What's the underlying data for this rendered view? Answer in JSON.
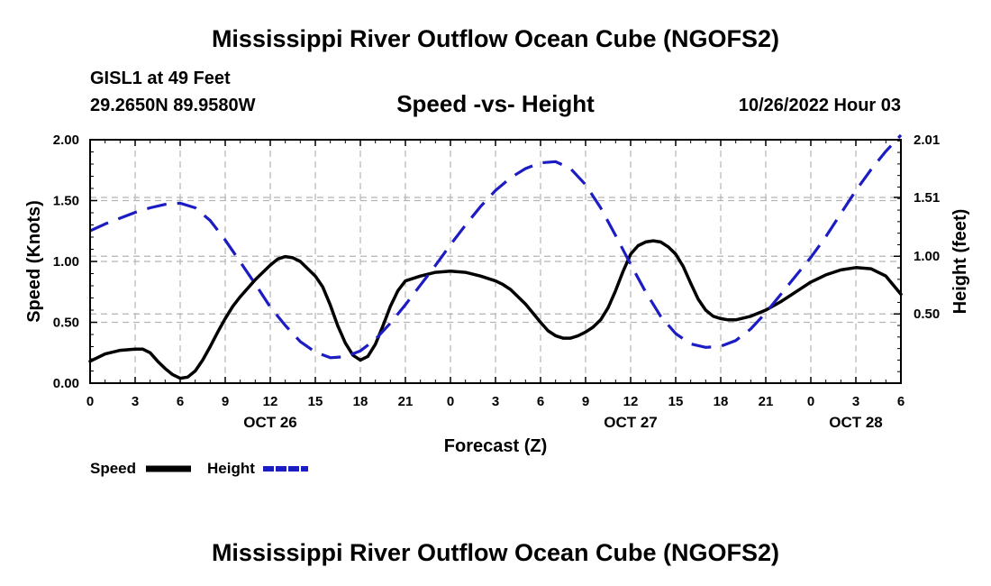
{
  "header": {
    "title": "Mississippi River Outflow Ocean Cube (NGOFS2)",
    "station": "GISL1 at 49 Feet",
    "coords": "29.2650N  89.9580W",
    "subtitle": "Speed -vs- Height",
    "runtime": "10/26/2022 Hour 03"
  },
  "footer": {
    "title": "Mississippi River Outflow Ocean Cube (NGOFS2)"
  },
  "chart_data": {
    "type": "line",
    "title": "Speed -vs- Height",
    "xlabel": "Forecast (Z)",
    "ylabel": "Speed (Knots)",
    "y2label": "Height (feet)",
    "x_range_hours": [
      0,
      54
    ],
    "x_ticks": [
      {
        "hour": 0,
        "label": "0"
      },
      {
        "hour": 3,
        "label": "3"
      },
      {
        "hour": 6,
        "label": "6"
      },
      {
        "hour": 9,
        "label": "9"
      },
      {
        "hour": 12,
        "label": "12"
      },
      {
        "hour": 15,
        "label": "15"
      },
      {
        "hour": 18,
        "label": "18"
      },
      {
        "hour": 21,
        "label": "21"
      },
      {
        "hour": 24,
        "label": "0"
      },
      {
        "hour": 27,
        "label": "3"
      },
      {
        "hour": 30,
        "label": "6"
      },
      {
        "hour": 33,
        "label": "9"
      },
      {
        "hour": 36,
        "label": "12"
      },
      {
        "hour": 39,
        "label": "15"
      },
      {
        "hour": 42,
        "label": "18"
      },
      {
        "hour": 45,
        "label": "21"
      },
      {
        "hour": 48,
        "label": "0"
      },
      {
        "hour": 51,
        "label": "3"
      },
      {
        "hour": 54,
        "label": "6"
      }
    ],
    "date_labels": [
      {
        "hour": 12,
        "label": "OCT 26"
      },
      {
        "hour": 36,
        "label": "OCT 27"
      },
      {
        "hour": 51,
        "label": "OCT 28"
      }
    ],
    "y_left": {
      "range": [
        0,
        2
      ],
      "ticks": [
        {
          "value": 0,
          "label": "0.00"
        },
        {
          "value": 0.5,
          "label": "0.50"
        },
        {
          "value": 1.0,
          "label": "1.00"
        },
        {
          "value": 1.5,
          "label": "1.50"
        },
        {
          "value": 2.0,
          "label": "2.00"
        }
      ]
    },
    "y_right": {
      "range": [
        -0.1,
        2.01
      ],
      "ticks": [
        {
          "value": 0.5,
          "label": "0.50"
        },
        {
          "value": 1.0,
          "label": "1.00"
        },
        {
          "value": 1.51,
          "label": "1.51"
        },
        {
          "value": 2.01,
          "label": "2.01"
        }
      ]
    },
    "grid": true,
    "series": [
      {
        "name": "Speed",
        "axis": "left",
        "color": "#000000",
        "dash": "solid",
        "points": [
          [
            0,
            0.18
          ],
          [
            1,
            0.24
          ],
          [
            2,
            0.27
          ],
          [
            3,
            0.28
          ],
          [
            3.5,
            0.28
          ],
          [
            4,
            0.25
          ],
          [
            4.5,
            0.18
          ],
          [
            5,
            0.12
          ],
          [
            5.5,
            0.07
          ],
          [
            6,
            0.04
          ],
          [
            6.5,
            0.05
          ],
          [
            7,
            0.1
          ],
          [
            7.5,
            0.19
          ],
          [
            8,
            0.3
          ],
          [
            8.5,
            0.42
          ],
          [
            9,
            0.53
          ],
          [
            9.5,
            0.63
          ],
          [
            10,
            0.71
          ],
          [
            11,
            0.85
          ],
          [
            12,
            0.97
          ],
          [
            12.5,
            1.02
          ],
          [
            13,
            1.04
          ],
          [
            13.5,
            1.03
          ],
          [
            14,
            1.0
          ],
          [
            15,
            0.88
          ],
          [
            15.5,
            0.79
          ],
          [
            16,
            0.64
          ],
          [
            16.5,
            0.47
          ],
          [
            17,
            0.33
          ],
          [
            17.5,
            0.23
          ],
          [
            18,
            0.19
          ],
          [
            18.5,
            0.22
          ],
          [
            19,
            0.32
          ],
          [
            19.5,
            0.47
          ],
          [
            20,
            0.63
          ],
          [
            20.5,
            0.76
          ],
          [
            21,
            0.84
          ],
          [
            22,
            0.88
          ],
          [
            23,
            0.91
          ],
          [
            24,
            0.92
          ],
          [
            25,
            0.91
          ],
          [
            26,
            0.88
          ],
          [
            27,
            0.84
          ],
          [
            27.5,
            0.81
          ],
          [
            28,
            0.77
          ],
          [
            29,
            0.65
          ],
          [
            30,
            0.5
          ],
          [
            30.5,
            0.43
          ],
          [
            31,
            0.39
          ],
          [
            31.5,
            0.37
          ],
          [
            32,
            0.37
          ],
          [
            32.5,
            0.39
          ],
          [
            33,
            0.42
          ],
          [
            33.5,
            0.46
          ],
          [
            34,
            0.52
          ],
          [
            34.5,
            0.62
          ],
          [
            35,
            0.76
          ],
          [
            35.5,
            0.92
          ],
          [
            36,
            1.06
          ],
          [
            36.5,
            1.13
          ],
          [
            37,
            1.16
          ],
          [
            37.5,
            1.17
          ],
          [
            38,
            1.16
          ],
          [
            38.5,
            1.12
          ],
          [
            39,
            1.06
          ],
          [
            39.5,
            0.96
          ],
          [
            40,
            0.82
          ],
          [
            40.5,
            0.69
          ],
          [
            41,
            0.6
          ],
          [
            41.5,
            0.55
          ],
          [
            42,
            0.53
          ],
          [
            42.5,
            0.52
          ],
          [
            43,
            0.52
          ],
          [
            44,
            0.55
          ],
          [
            45,
            0.6
          ],
          [
            46,
            0.67
          ],
          [
            47,
            0.75
          ],
          [
            48,
            0.83
          ],
          [
            49,
            0.89
          ],
          [
            50,
            0.93
          ],
          [
            51,
            0.95
          ],
          [
            52,
            0.94
          ],
          [
            53,
            0.88
          ],
          [
            54,
            0.73
          ]
        ]
      },
      {
        "name": "Height",
        "axis": "right",
        "color": "#1c1cc4",
        "dash": "dashed",
        "points": [
          [
            0,
            1.22
          ],
          [
            1,
            1.28
          ],
          [
            2,
            1.33
          ],
          [
            3,
            1.38
          ],
          [
            4,
            1.42
          ],
          [
            5,
            1.45
          ],
          [
            6,
            1.46
          ],
          [
            7,
            1.42
          ],
          [
            8,
            1.31
          ],
          [
            9,
            1.14
          ],
          [
            10,
            0.95
          ],
          [
            11,
            0.76
          ],
          [
            12,
            0.56
          ],
          [
            13,
            0.4
          ],
          [
            14,
            0.26
          ],
          [
            15,
            0.17
          ],
          [
            16,
            0.12
          ],
          [
            17,
            0.13
          ],
          [
            18,
            0.18
          ],
          [
            19,
            0.28
          ],
          [
            20,
            0.42
          ],
          [
            21,
            0.58
          ],
          [
            22,
            0.75
          ],
          [
            23,
            0.92
          ],
          [
            24,
            1.1
          ],
          [
            25,
            1.27
          ],
          [
            26,
            1.43
          ],
          [
            27,
            1.57
          ],
          [
            28,
            1.68
          ],
          [
            29,
            1.76
          ],
          [
            30,
            1.81
          ],
          [
            31,
            1.82
          ],
          [
            32,
            1.76
          ],
          [
            33,
            1.62
          ],
          [
            34,
            1.42
          ],
          [
            35,
            1.18
          ],
          [
            36,
            0.93
          ],
          [
            37,
            0.69
          ],
          [
            38,
            0.48
          ],
          [
            39,
            0.33
          ],
          [
            40,
            0.24
          ],
          [
            41,
            0.21
          ],
          [
            42,
            0.22
          ],
          [
            43,
            0.27
          ],
          [
            44,
            0.37
          ],
          [
            45,
            0.51
          ],
          [
            46,
            0.67
          ],
          [
            47,
            0.83
          ],
          [
            48,
            0.99
          ],
          [
            49,
            1.17
          ],
          [
            50,
            1.37
          ],
          [
            51,
            1.57
          ],
          [
            52,
            1.75
          ],
          [
            53,
            1.91
          ],
          [
            54,
            2.05
          ]
        ]
      }
    ],
    "legend": [
      {
        "name": "Speed",
        "color": "#000000",
        "dash": "solid"
      },
      {
        "name": "Height",
        "color": "#1c1cc4",
        "dash": "dashed"
      }
    ],
    "legend_position": "bottom-left"
  }
}
